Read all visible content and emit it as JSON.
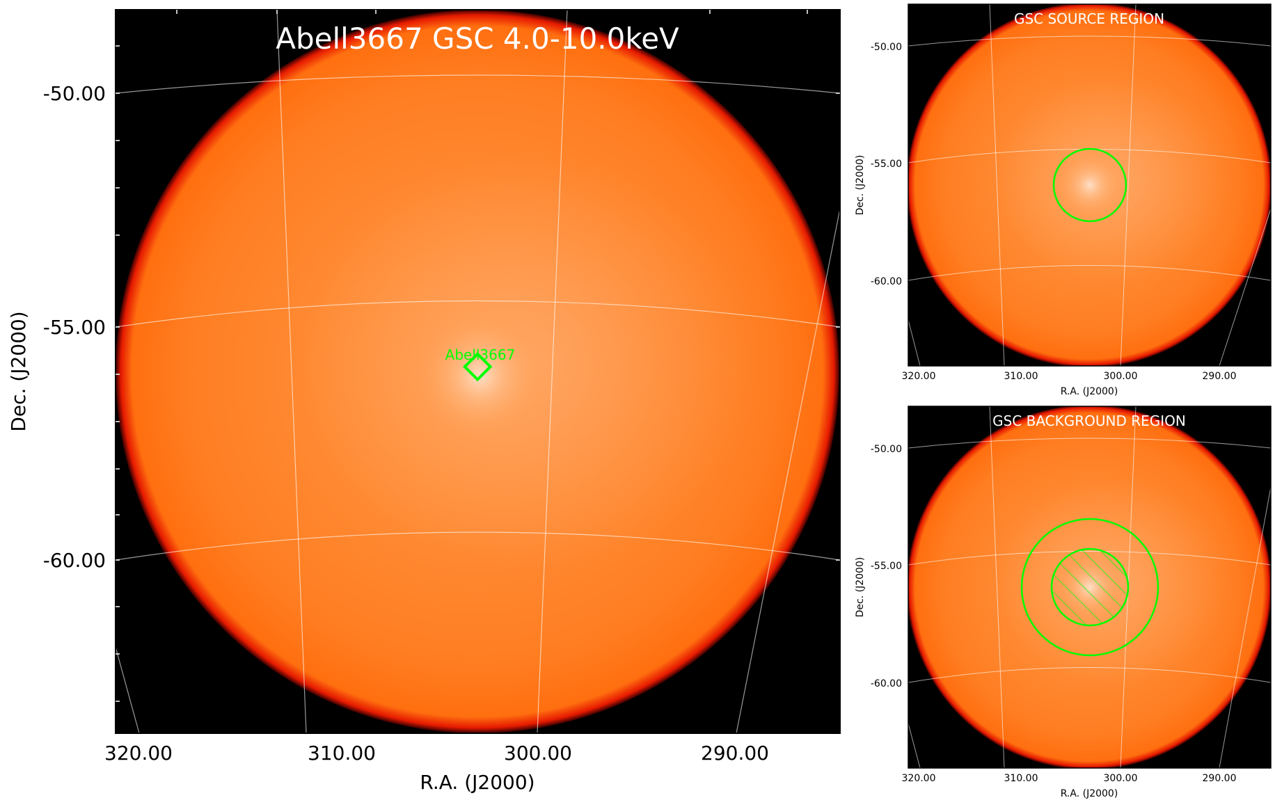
{
  "main_panel": {
    "title": "Abell3667 GSC 4.0-10.0keV",
    "xlabel": "R.A. (J2000)",
    "ylabel": "Dec. (J2000)",
    "x_ticks": [
      "320.00",
      "310.00",
      "300.00",
      "290.00"
    ],
    "y_ticks": [
      "-50.00",
      "-55.00",
      "-60.00"
    ],
    "source_label": "Abell3667"
  },
  "source_panel": {
    "title": "GSC SOURCE REGION",
    "xlabel": "R.A. (J2000)",
    "ylabel": "Dec. (J2000)",
    "x_ticks": [
      "320.00",
      "310.00",
      "300.00",
      "290.00"
    ],
    "y_ticks": [
      "-50.00",
      "-55.00",
      "-60.00"
    ]
  },
  "background_panel": {
    "title": "GSC BACKGROUND REGION",
    "xlabel": "R.A. (J2000)",
    "ylabel": "Dec. (J2000)",
    "x_ticks": [
      "320.00",
      "310.00",
      "300.00",
      "290.00"
    ],
    "y_ticks": [
      "-50.00",
      "-55.00",
      "-60.00"
    ]
  },
  "colors": {
    "disk_orange": "#ff7a1a",
    "disk_center": "#ffd5b5",
    "rim_red": "#ff1a00",
    "field_black": "#000000",
    "region_green": "#00ff00",
    "grid_white": "#ffffff"
  }
}
